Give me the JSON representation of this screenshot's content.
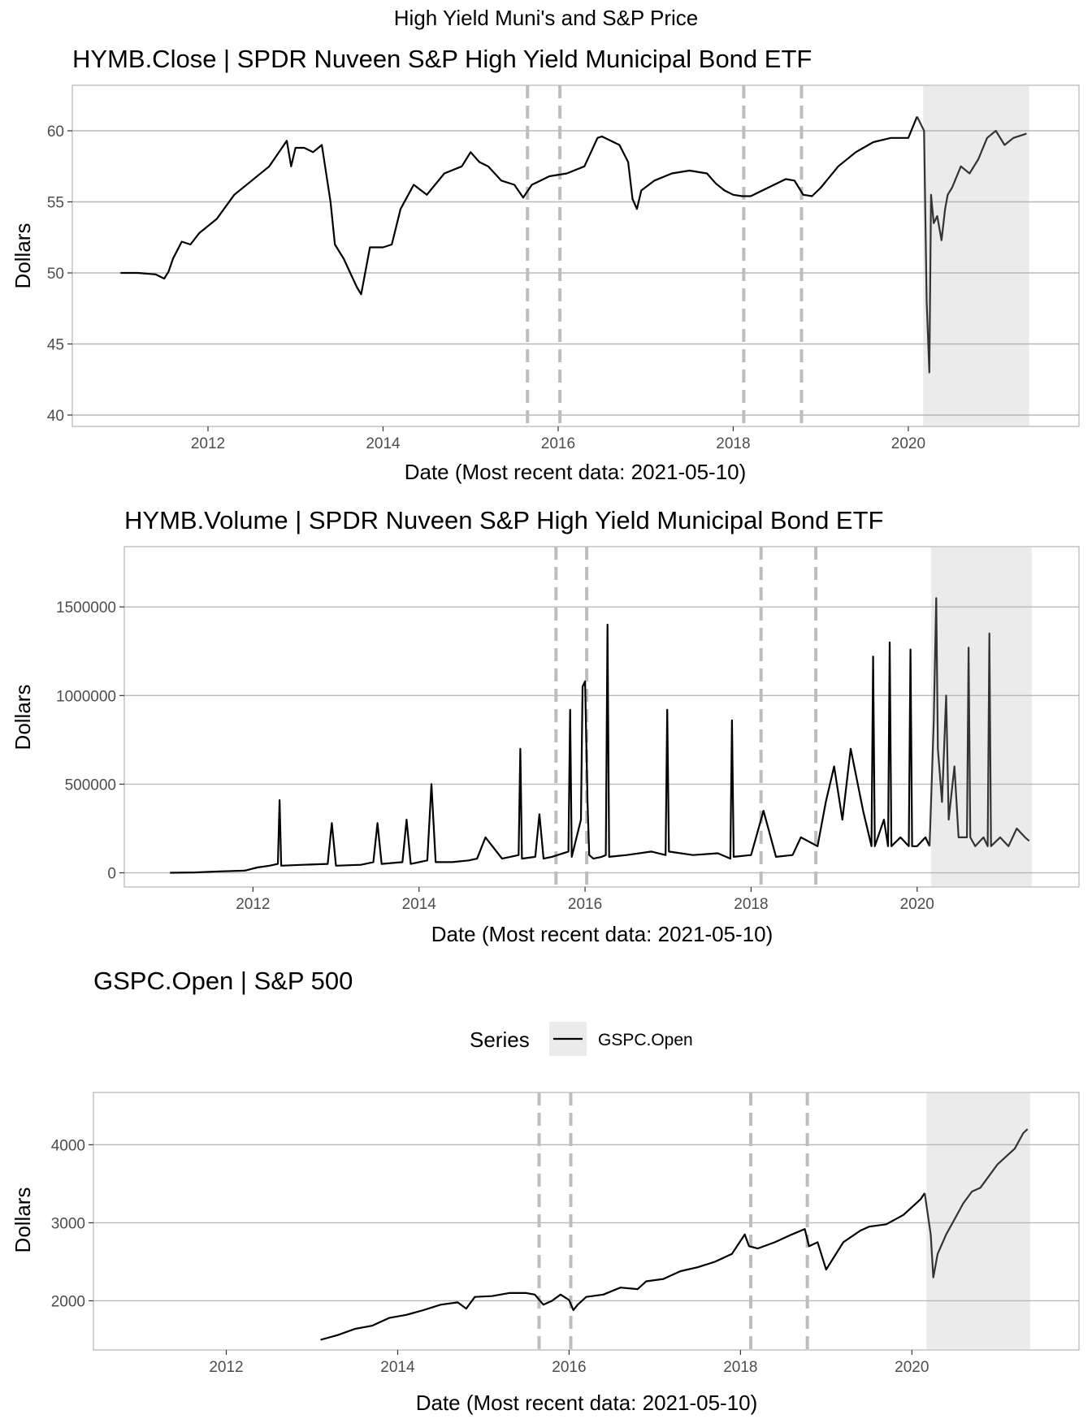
{
  "figure": {
    "title": "High Yield Muni's and S&P Price"
  },
  "colors": {
    "series": "#000000",
    "recession_series": "#333333",
    "recession_shade": "#ebebeb",
    "event_lines": "#bdbdbd",
    "grid": "#b8b8b8"
  },
  "legend": {
    "title": "Series",
    "entries": [
      "GSPC.Open"
    ],
    "placement": "top"
  },
  "chart_data": [
    {
      "id": "close",
      "type": "line",
      "title": "HYMB.Close | SPDR Nuveen S&P High Yield Municipal Bond ETF",
      "xlabel": "Date (Most recent data: 2021-05-10)",
      "ylabel": "Dollars",
      "xlim": [
        2010.45,
        2021.95
      ],
      "ylim": [
        39.2,
        63.2
      ],
      "x_ticks": [
        2012,
        2014,
        2016,
        2018,
        2020
      ],
      "x_tick_labels": [
        "2012",
        "2014",
        "2016",
        "2018",
        "2020"
      ],
      "y_ticks": [
        40,
        45,
        50,
        55,
        60
      ],
      "y_tick_labels": [
        "40",
        "45",
        "50",
        "55",
        "60"
      ],
      "event_lines": [
        2015.65,
        2016.02,
        2018.12,
        2018.78
      ],
      "shaded_period": [
        2020.17,
        2021.38
      ],
      "grid": "horizontal",
      "series": [
        {
          "x": [
            2011.0,
            2011.2,
            2011.4,
            2011.5,
            2011.55,
            2011.6,
            2011.7,
            2011.8,
            2011.9,
            2012.1,
            2012.3,
            2012.5,
            2012.7,
            2012.9,
            2012.95,
            2013.0,
            2013.1,
            2013.2,
            2013.3,
            2013.4,
            2013.45,
            2013.5,
            2013.55,
            2013.7,
            2013.75,
            2013.85,
            2014.0,
            2014.1,
            2014.2,
            2014.35,
            2014.5,
            2014.7,
            2014.9,
            2015.0,
            2015.1,
            2015.2,
            2015.35,
            2015.5,
            2015.6,
            2015.7,
            2015.9,
            2016.1,
            2016.3,
            2016.45,
            2016.5,
            2016.7,
            2016.8,
            2016.85,
            2016.9,
            2016.95,
            2017.1,
            2017.3,
            2017.5,
            2017.7,
            2017.8,
            2017.9,
            2018.0,
            2018.1,
            2018.2,
            2018.4,
            2018.6,
            2018.7,
            2018.8,
            2018.9,
            2019.0,
            2019.2,
            2019.4,
            2019.6,
            2019.8,
            2020.0,
            2020.1,
            2020.18,
            2020.21,
            2020.24,
            2020.26,
            2020.29,
            2020.33,
            2020.38,
            2020.42,
            2020.45,
            2020.5,
            2020.6,
            2020.7,
            2020.8,
            2020.9,
            2021.0,
            2021.1,
            2021.2,
            2021.3,
            2021.35
          ],
          "values": [
            50.0,
            50.0,
            49.9,
            49.6,
            50.1,
            51.0,
            52.2,
            52.0,
            52.8,
            53.8,
            55.5,
            56.5,
            57.5,
            59.3,
            57.5,
            58.8,
            58.8,
            58.5,
            59.0,
            55.0,
            52.0,
            51.5,
            51.0,
            49.0,
            48.5,
            51.8,
            51.8,
            52.0,
            54.5,
            56.2,
            55.5,
            57.0,
            57.5,
            58.5,
            57.8,
            57.5,
            56.5,
            56.2,
            55.3,
            56.2,
            56.8,
            57.0,
            57.5,
            59.5,
            59.6,
            59.0,
            57.8,
            55.2,
            54.5,
            55.8,
            56.5,
            57.0,
            57.2,
            57.0,
            56.3,
            55.8,
            55.5,
            55.4,
            55.4,
            56.0,
            56.6,
            56.5,
            55.5,
            55.4,
            56.0,
            57.5,
            58.5,
            59.2,
            59.5,
            59.5,
            61.0,
            60.0,
            48.0,
            43.0,
            55.5,
            53.5,
            54.0,
            52.3,
            54.5,
            55.5,
            56.0,
            57.5,
            57.0,
            58.0,
            59.5,
            60.0,
            59.0,
            59.5,
            59.7,
            59.8
          ]
        }
      ]
    },
    {
      "id": "volume",
      "type": "line",
      "title": "HYMB.Volume | SPDR Nuveen S&P High Yield Municipal Bond ETF",
      "xlabel": "Date (Most recent data: 2021-05-10)",
      "ylabel": "Dollars",
      "xlim": [
        2010.45,
        2021.95
      ],
      "ylim": [
        -80000,
        1840000
      ],
      "x_ticks": [
        2012,
        2014,
        2016,
        2018,
        2020
      ],
      "x_tick_labels": [
        "2012",
        "2014",
        "2016",
        "2018",
        "2020"
      ],
      "y_ticks": [
        0,
        500000,
        1000000,
        1500000
      ],
      "y_tick_labels": [
        "0",
        "500000",
        "1000000",
        "1500000"
      ],
      "event_lines": [
        2015.65,
        2016.02,
        2018.12,
        2018.78
      ],
      "shaded_period": [
        2020.17,
        2021.38
      ],
      "grid": "horizontal",
      "series": [
        {
          "x": [
            2011.0,
            2011.3,
            2011.6,
            2011.9,
            2012.05,
            2012.2,
            2012.3,
            2012.32,
            2012.34,
            2012.6,
            2012.9,
            2012.95,
            2013.0,
            2013.3,
            2013.45,
            2013.5,
            2013.55,
            2013.8,
            2013.85,
            2013.9,
            2014.1,
            2014.15,
            2014.2,
            2014.4,
            2014.6,
            2014.7,
            2014.8,
            2015.0,
            2015.2,
            2015.22,
            2015.24,
            2015.4,
            2015.45,
            2015.5,
            2015.6,
            2015.8,
            2015.82,
            2015.84,
            2015.95,
            2015.97,
            2016.0,
            2016.03,
            2016.05,
            2016.1,
            2016.2,
            2016.25,
            2016.27,
            2016.29,
            2016.5,
            2016.8,
            2016.97,
            2016.99,
            2017.01,
            2017.3,
            2017.6,
            2017.75,
            2017.77,
            2017.79,
            2018.0,
            2018.15,
            2018.3,
            2018.5,
            2018.6,
            2018.8,
            2018.9,
            2019.0,
            2019.1,
            2019.2,
            2019.35,
            2019.45,
            2019.47,
            2019.49,
            2019.6,
            2019.65,
            2019.67,
            2019.69,
            2019.8,
            2019.9,
            2019.92,
            2019.94,
            2020.0,
            2020.1,
            2020.15,
            2020.2,
            2020.23,
            2020.25,
            2020.3,
            2020.35,
            2020.38,
            2020.45,
            2020.5,
            2020.6,
            2020.62,
            2020.64,
            2020.7,
            2020.8,
            2020.85,
            2020.87,
            2020.89,
            2021.0,
            2021.1,
            2021.2,
            2021.3,
            2021.35
          ],
          "values": [
            0,
            2000,
            8000,
            12000,
            30000,
            40000,
            50000,
            410000,
            40000,
            45000,
            50000,
            280000,
            40000,
            45000,
            60000,
            280000,
            50000,
            60000,
            300000,
            50000,
            70000,
            500000,
            60000,
            60000,
            70000,
            80000,
            200000,
            80000,
            100000,
            700000,
            80000,
            90000,
            330000,
            80000,
            90000,
            120000,
            920000,
            90000,
            300000,
            1050000,
            1080000,
            400000,
            100000,
            80000,
            90000,
            100000,
            1400000,
            90000,
            100000,
            120000,
            100000,
            920000,
            120000,
            100000,
            110000,
            80000,
            860000,
            90000,
            100000,
            350000,
            90000,
            100000,
            200000,
            150000,
            400000,
            600000,
            300000,
            700000,
            350000,
            150000,
            1220000,
            150000,
            300000,
            150000,
            1300000,
            150000,
            200000,
            150000,
            1260000,
            150000,
            150000,
            200000,
            150000,
            850000,
            1550000,
            700000,
            400000,
            1000000,
            300000,
            600000,
            200000,
            200000,
            1270000,
            200000,
            150000,
            200000,
            150000,
            1350000,
            150000,
            200000,
            150000,
            250000,
            200000,
            180000
          ]
        }
      ]
    },
    {
      "id": "gspc",
      "type": "line",
      "title": "GSPC.Open | S&P 500",
      "xlabel": "Date (Most recent data: 2021-05-10)",
      "ylabel": "Dollars",
      "xlim": [
        2010.45,
        2021.95
      ],
      "ylim": [
        1370,
        4670
      ],
      "x_ticks": [
        2012,
        2014,
        2016,
        2018,
        2020
      ],
      "x_tick_labels": [
        "2012",
        "2014",
        "2016",
        "2018",
        "2020"
      ],
      "y_ticks": [
        2000,
        3000,
        4000
      ],
      "y_tick_labels": [
        "2000",
        "3000",
        "4000"
      ],
      "event_lines": [
        2015.65,
        2016.02,
        2018.12,
        2018.78
      ],
      "shaded_period": [
        2020.17,
        2021.38
      ],
      "grid": "horizontal",
      "series": [
        {
          "name": "GSPC.Open",
          "x": [
            2013.1,
            2013.3,
            2013.5,
            2013.7,
            2013.9,
            2014.1,
            2014.3,
            2014.5,
            2014.7,
            2014.8,
            2014.9,
            2015.1,
            2015.3,
            2015.5,
            2015.6,
            2015.7,
            2015.8,
            2015.9,
            2016.0,
            2016.05,
            2016.1,
            2016.2,
            2016.4,
            2016.6,
            2016.8,
            2016.9,
            2017.1,
            2017.3,
            2017.5,
            2017.7,
            2017.9,
            2018.05,
            2018.1,
            2018.2,
            2018.4,
            2018.6,
            2018.75,
            2018.8,
            2018.9,
            2019.0,
            2019.2,
            2019.4,
            2019.5,
            2019.7,
            2019.9,
            2020.1,
            2020.15,
            2020.22,
            2020.25,
            2020.3,
            2020.4,
            2020.5,
            2020.6,
            2020.7,
            2020.8,
            2020.9,
            2021.0,
            2021.1,
            2021.2,
            2021.3,
            2021.35
          ],
          "values": [
            1500,
            1560,
            1640,
            1680,
            1780,
            1820,
            1880,
            1950,
            1980,
            1900,
            2050,
            2060,
            2100,
            2100,
            2080,
            1950,
            2000,
            2080,
            2010,
            1880,
            1950,
            2050,
            2080,
            2170,
            2150,
            2250,
            2280,
            2380,
            2430,
            2500,
            2600,
            2850,
            2700,
            2670,
            2750,
            2850,
            2920,
            2700,
            2750,
            2400,
            2750,
            2900,
            2950,
            2980,
            3100,
            3300,
            3380,
            2850,
            2300,
            2600,
            2850,
            3050,
            3250,
            3400,
            3450,
            3600,
            3750,
            3850,
            3950,
            4150,
            4200
          ]
        }
      ]
    }
  ]
}
